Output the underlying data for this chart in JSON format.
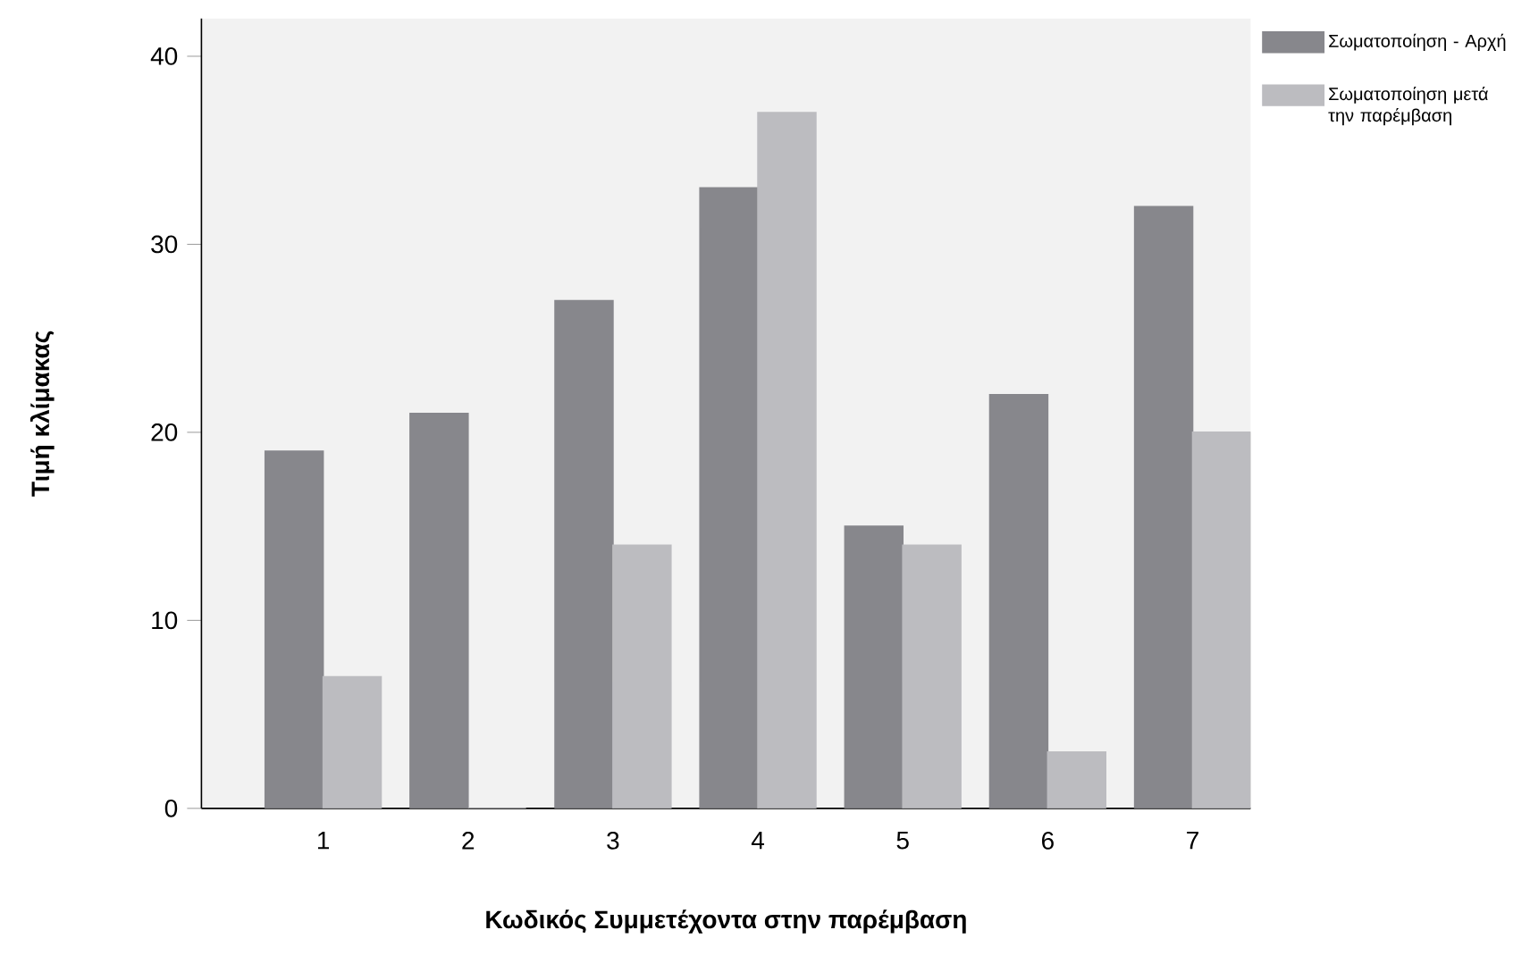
{
  "chart_data": {
    "type": "bar",
    "xlabel": "Κωδικός Συμμετέχοντα στην παρέμβαση",
    "ylabel": "Τιμή κλίμακας",
    "categories": [
      "1",
      "2",
      "3",
      "4",
      "5",
      "6",
      "7"
    ],
    "series": [
      {
        "name": "Σωματοποίηση - Αρχή",
        "color": "#87878c",
        "values": [
          19,
          21,
          27,
          33,
          15,
          22,
          32
        ]
      },
      {
        "name": "Σωματοποίηση μετά την παρέμβαση",
        "color": "#bcbcc0",
        "values": [
          7,
          0,
          14,
          37,
          14,
          3,
          20
        ]
      }
    ],
    "ylim": [
      0,
      42
    ],
    "yticks": [
      0,
      10,
      20,
      30,
      40
    ],
    "grid": false,
    "legend": "top right"
  }
}
